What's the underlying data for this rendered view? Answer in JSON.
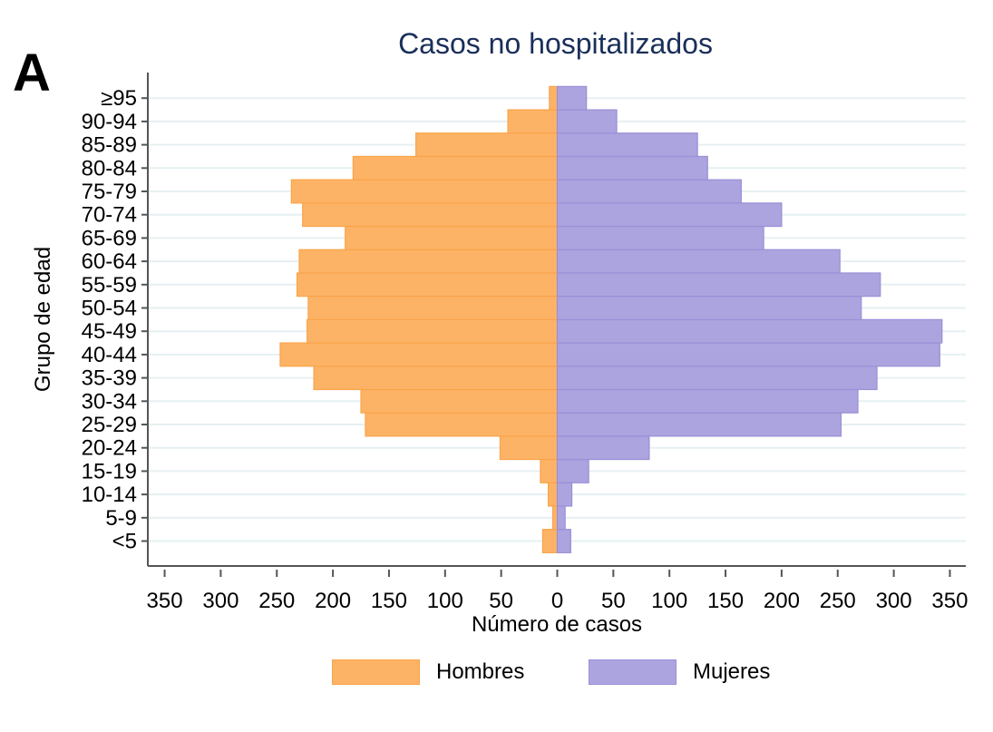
{
  "panel_label": "A",
  "chart_data": {
    "type": "bar",
    "orientation": "horizontal",
    "subtype": "population-pyramid",
    "title": "Casos no hospitalizados",
    "xlabel": "Número de casos",
    "ylabel": "Grupo de edad",
    "categories": [
      "<5",
      "5-9",
      "10-14",
      "15-19",
      "20-24",
      "25-29",
      "30-34",
      "35-39",
      "40-44",
      "45-49",
      "50-54",
      "55-59",
      "60-64",
      "65-69",
      "70-74",
      "75-79",
      "80-84",
      "85-89",
      "90-94",
      "≥95"
    ],
    "series": [
      {
        "name": "Hombres",
        "side": "left",
        "color": "#fdb366",
        "values": [
          13,
          4,
          8,
          15,
          51,
          171,
          175,
          217,
          247,
          223,
          222,
          232,
          230,
          189,
          227,
          237,
          182,
          126,
          44,
          7
        ]
      },
      {
        "name": "Mujeres",
        "side": "right",
        "color": "#aba4de",
        "values": [
          12,
          7,
          13,
          28,
          82,
          253,
          268,
          285,
          341,
          343,
          271,
          288,
          252,
          184,
          200,
          164,
          134,
          125,
          53,
          26
        ]
      }
    ],
    "x_ticks": [
      350,
      300,
      250,
      200,
      150,
      100,
      50,
      0,
      50,
      100,
      150,
      200,
      250,
      300,
      350
    ],
    "xlim": [
      -370,
      365
    ],
    "grid": true,
    "legend_position": "bottom"
  },
  "legend": [
    {
      "label": "Hombres",
      "color": "#fdb366",
      "border": "#f9a44a"
    },
    {
      "label": "Mujeres",
      "color": "#aba4de",
      "border": "#9a90d8"
    }
  ]
}
